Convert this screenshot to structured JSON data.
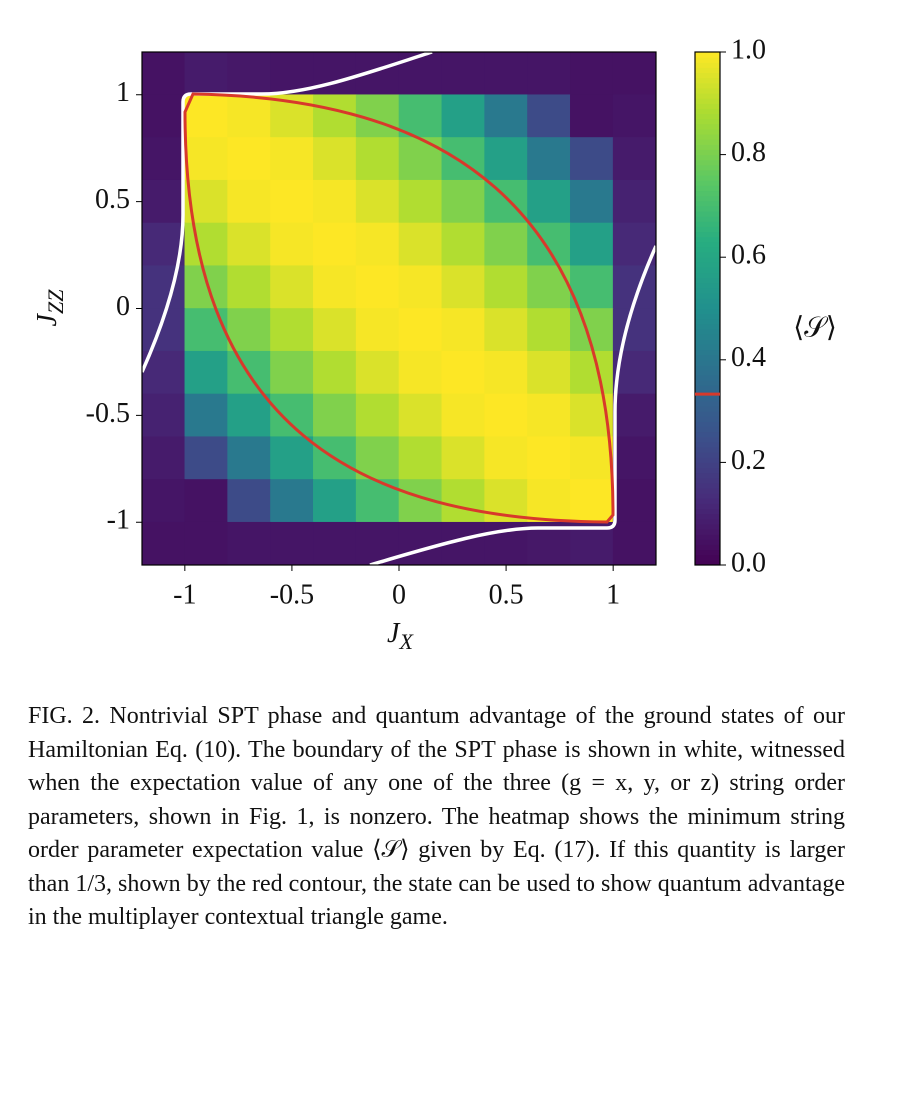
{
  "chart_data": {
    "type": "heatmap",
    "xlabel": "J",
    "xlabel_sub": "X",
    "ylabel": "J",
    "ylabel_sub": "ZZ",
    "colorbar_label": "⟨𝒮⟩",
    "x": [
      -1.1,
      -0.9,
      -0.7,
      -0.5,
      -0.3,
      -0.1,
      0.1,
      0.3,
      0.5,
      0.7,
      0.9,
      1.1
    ],
    "y": [
      1.1,
      0.9,
      0.7,
      0.5,
      0.3,
      0.1,
      -0.1,
      -0.3,
      -0.5,
      -0.7,
      -0.9,
      -1.1
    ],
    "values": [
      [
        0.05,
        0.08,
        0.07,
        0.06,
        0.06,
        0.06,
        0.06,
        0.06,
        0.06,
        0.06,
        0.05,
        0.05
      ],
      [
        0.05,
        1,
        0.99,
        0.95,
        0.89,
        0.81,
        0.7,
        0.57,
        0.41,
        0.23,
        0.05,
        0.06
      ],
      [
        0.06,
        0.99,
        1,
        0.99,
        0.95,
        0.89,
        0.81,
        0.7,
        0.57,
        0.41,
        0.23,
        0.08
      ],
      [
        0.08,
        0.95,
        0.99,
        1,
        0.99,
        0.95,
        0.89,
        0.81,
        0.7,
        0.57,
        0.41,
        0.1
      ],
      [
        0.12,
        0.89,
        0.95,
        0.99,
        1,
        0.99,
        0.95,
        0.89,
        0.81,
        0.7,
        0.57,
        0.12
      ],
      [
        0.15,
        0.81,
        0.89,
        0.95,
        0.99,
        1,
        0.99,
        0.95,
        0.89,
        0.81,
        0.7,
        0.15
      ],
      [
        0.15,
        0.7,
        0.81,
        0.89,
        0.95,
        0.99,
        1,
        0.99,
        0.95,
        0.89,
        0.81,
        0.15
      ],
      [
        0.12,
        0.57,
        0.7,
        0.81,
        0.89,
        0.95,
        0.99,
        1,
        0.99,
        0.95,
        0.89,
        0.12
      ],
      [
        0.1,
        0.41,
        0.57,
        0.7,
        0.81,
        0.89,
        0.95,
        0.99,
        1,
        0.99,
        0.95,
        0.08
      ],
      [
        0.08,
        0.23,
        0.41,
        0.57,
        0.7,
        0.81,
        0.89,
        0.95,
        0.99,
        1,
        0.99,
        0.06
      ],
      [
        0.06,
        0.05,
        0.23,
        0.41,
        0.57,
        0.7,
        0.81,
        0.89,
        0.95,
        0.99,
        1,
        0.05
      ],
      [
        0.05,
        0.05,
        0.06,
        0.06,
        0.06,
        0.06,
        0.06,
        0.06,
        0.06,
        0.07,
        0.08,
        0.05
      ]
    ],
    "xlim": [
      -1.2,
      1.2
    ],
    "ylim": [
      -1.2,
      1.2
    ],
    "xticks": [
      -1,
      -0.5,
      0,
      0.5,
      1
    ],
    "yticks": [
      -1,
      -0.5,
      0,
      0.5,
      1
    ],
    "colormap": "viridis",
    "clim": [
      0,
      1
    ],
    "cticks": [
      {
        "value": 0,
        "label": "0.0"
      },
      0.2,
      0.4,
      0.6,
      0.8,
      {
        "value": 1,
        "label": "1.0"
      }
    ],
    "contour_level": 0.333,
    "contour_color": "#d8392b"
  },
  "caption": "FIG. 2.   Nontrivial SPT phase and quantum advantage of the ground states of our Hamiltonian Eq. (10). The boundary of the SPT phase is shown in white, witnessed when the expectation value of any one of the three (g = x, y, or z) string order parameters, shown in Fig. 1, is nonzero. The heatmap shows the minimum string order parameter expectation value ⟨𝒮⟩ given by Eq. (17). If this quantity is larger than 1/3, shown by the red contour, the state can be used to show quantum advantage in the multiplayer contextual triangle game."
}
